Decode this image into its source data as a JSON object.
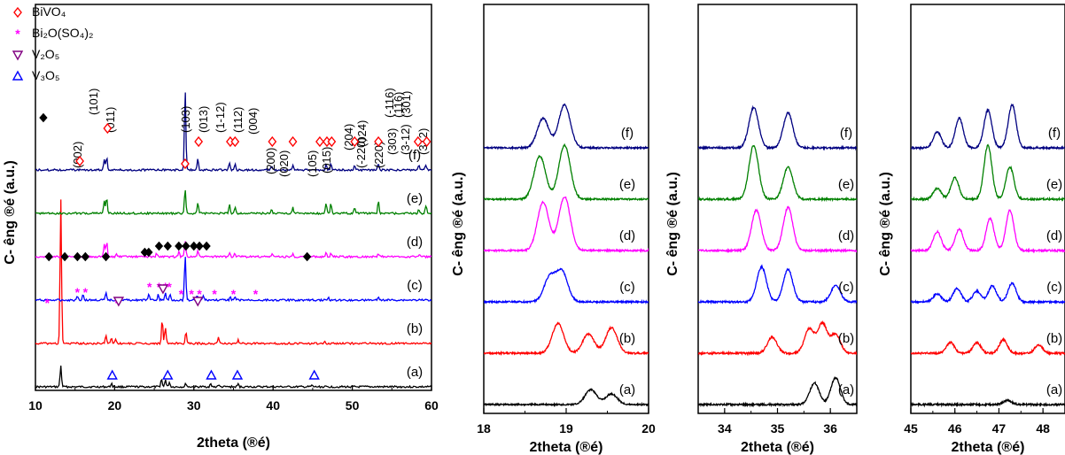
{
  "colors": {
    "a": "#000000",
    "b": "#ff0000",
    "c": "#0000ff",
    "d": "#ff00ff",
    "e": "#008000",
    "f": "#000080",
    "axis": "#000000"
  },
  "chart_data": [
    {
      "type": "line",
      "title": "",
      "xlabel": "2theta (®é)",
      "ylabel": "C- êng ®é (a.u.)",
      "xlim": [
        10,
        60
      ],
      "xticks": [
        "10",
        "20",
        "30",
        "40",
        "50",
        "60"
      ],
      "yticks_visible": false,
      "series": [
        {
          "name": "(a)",
          "color": "#000000",
          "offset": 0,
          "peaks": [
            [
              13.2,
              1.6
            ],
            [
              19.6,
              0.25
            ],
            [
              25.9,
              0.6
            ],
            [
              26.4,
              0.55
            ],
            [
              26.9,
              0.35
            ],
            [
              29.0,
              0.25
            ],
            [
              32.1,
              0.2
            ],
            [
              33.1,
              0.15
            ],
            [
              35.6,
              0.2
            ],
            [
              44.9,
              0.1
            ]
          ]
        },
        {
          "name": "(b)",
          "color": "#ff0000",
          "offset": 1,
          "peaks": [
            [
              13.2,
              11.0
            ],
            [
              18.9,
              0.6
            ],
            [
              19.6,
              0.45
            ],
            [
              20.1,
              0.35
            ],
            [
              26.0,
              1.8
            ],
            [
              26.4,
              1.2
            ],
            [
              29.0,
              0.8
            ],
            [
              33.1,
              0.45
            ],
            [
              35.6,
              0.25
            ],
            [
              46.5,
              0.2
            ]
          ]
        },
        {
          "name": "(c)",
          "color": "#0000ff",
          "offset": 2,
          "peaks": [
            [
              15.3,
              0.35
            ],
            [
              16.0,
              0.45
            ],
            [
              18.9,
              0.5
            ],
            [
              24.3,
              0.45
            ],
            [
              25.5,
              0.4
            ],
            [
              26.4,
              0.55
            ],
            [
              27.0,
              0.4
            ],
            [
              28.9,
              3.5
            ],
            [
              30.4,
              0.4
            ],
            [
              31.2,
              0.3
            ],
            [
              34.6,
              0.25
            ],
            [
              35.2,
              0.2
            ],
            [
              47.0,
              0.15
            ],
            [
              53.3,
              0.15
            ]
          ]
        },
        {
          "name": "(d)",
          "color": "#ff00ff",
          "offset": 3,
          "peaks": [
            [
              18.7,
              0.9
            ],
            [
              19.0,
              1.1
            ],
            [
              20.2,
              0.2
            ],
            [
              25.3,
              0.25
            ],
            [
              28.1,
              0.4
            ],
            [
              28.9,
              1.3
            ],
            [
              30.5,
              0.4
            ],
            [
              34.5,
              0.3
            ],
            [
              35.2,
              0.25
            ],
            [
              39.9,
              0.2
            ],
            [
              42.5,
              0.2
            ],
            [
              46.7,
              0.25
            ],
            [
              47.3,
              0.2
            ],
            [
              53.3,
              0.2
            ],
            [
              58.5,
              0.15
            ]
          ]
        },
        {
          "name": "(e)",
          "color": "#008000",
          "offset": 4,
          "peaks": [
            [
              18.7,
              1.0
            ],
            [
              19.0,
              1.2
            ],
            [
              28.9,
              1.9
            ],
            [
              30.5,
              0.8
            ],
            [
              34.5,
              0.7
            ],
            [
              35.2,
              0.5
            ],
            [
              39.8,
              0.3
            ],
            [
              42.5,
              0.45
            ],
            [
              46.7,
              0.8
            ],
            [
              47.3,
              0.7
            ],
            [
              50.3,
              0.4
            ],
            [
              53.3,
              0.9
            ],
            [
              58.4,
              0.3
            ],
            [
              59.3,
              0.6
            ]
          ]
        },
        {
          "name": "(f)",
          "color": "#000080",
          "offset": 5,
          "peaks": [
            [
              18.7,
              0.8
            ],
            [
              19.0,
              1.0
            ],
            [
              28.9,
              6.2
            ],
            [
              30.5,
              0.8
            ],
            [
              34.5,
              0.55
            ],
            [
              35.2,
              0.45
            ],
            [
              39.8,
              0.3
            ],
            [
              42.5,
              0.35
            ],
            [
              46.7,
              0.4
            ],
            [
              47.3,
              0.45
            ],
            [
              50.3,
              0.3
            ],
            [
              53.3,
              0.5
            ],
            [
              58.4,
              0.3
            ],
            [
              59.3,
              0.4
            ]
          ]
        }
      ],
      "legend": {
        "placement": "top-left",
        "items": [
          {
            "label": "BiVO₄",
            "marker": "diamond",
            "color": "#ff0000"
          },
          {
            "label": "Bi₂O(SO₄)₂",
            "marker": "star",
            "color": "#ff00ff"
          },
          {
            "label": "V₂O₅",
            "marker": "triangle-down",
            "color": "#800080"
          },
          {
            "label": "V₃O₅",
            "marker": "triangle-up",
            "color": "#0000ff"
          }
        ]
      },
      "hkl_labels": [
        {
          "text": "(002)",
          "x": 15.2
        },
        {
          "text": "(101)",
          "x": 17.9
        },
        {
          "text": "(011)",
          "x": 19.9
        },
        {
          "text": "(103)",
          "x": 27.4
        },
        {
          "text": "(013)",
          "x": 29.3
        },
        {
          "text": "(1-12)",
          "x": 31.1
        },
        {
          "text": "(112)",
          "x": 33.0
        },
        {
          "text": "(004)",
          "x": 30.8
        },
        {
          "text": "(200)",
          "x": 34.2
        },
        {
          "text": "(020)",
          "x": 36.2
        },
        {
          "text": "(105)",
          "x": 40.4
        },
        {
          "text": "(015)",
          "x": 43.0
        },
        {
          "text": "(204)",
          "x": 45.7
        },
        {
          "text": "(024)",
          "x": 48.2
        },
        {
          "text": "(-220)",
          "x": 50.3
        },
        {
          "text": "(220)",
          "x": 52.4
        },
        {
          "text": "(-116)",
          "x": 54.6
        },
        {
          "text": "(116)",
          "x": 56.7
        },
        {
          "text": "(301)",
          "x": 58.7
        },
        {
          "text": "(303)",
          "x": 53.9
        },
        {
          "text": "(3-12)",
          "x": 56.4
        },
        {
          "text": "(312)",
          "x": 59.0
        }
      ],
      "markers": [
        {
          "marker": "diamond",
          "color": "#ff0000",
          "series": "(f)",
          "x": [
            15.6,
            19.1,
            28.9,
            30.6,
            34.6,
            35.2,
            39.9,
            42.5,
            45.9,
            46.8,
            47.4,
            50.3,
            53.3,
            58.3,
            59.4
          ]
        },
        {
          "marker": "filled-diamond",
          "color": "#000000",
          "series": "(d)",
          "x": [
            11.7,
            13.7,
            15.3,
            16.3,
            18.9,
            23.8,
            24.3,
            25.6,
            26.7,
            28.1,
            29.0,
            30.0,
            30.7,
            31.6,
            44.3
          ]
        },
        {
          "marker": "filled-diamond",
          "color": "#000000",
          "series": "top",
          "x": [
            11.0
          ]
        },
        {
          "marker": "star",
          "color": "#ff00ff",
          "series": "(c)",
          "x": [
            11.5,
            15.3,
            16.3,
            20.3,
            24.4,
            25.6,
            26.4,
            26.9,
            28.4,
            29.7,
            30.7,
            32.6,
            35.0,
            37.8
          ]
        },
        {
          "marker": "triangle-down",
          "color": "#800080",
          "series": "(c)",
          "x": [
            20.5,
            26.1,
            30.5
          ]
        },
        {
          "marker": "triangle-up",
          "color": "#0000ff",
          "series": "(a)",
          "x": [
            19.7,
            26.7,
            32.2,
            35.5,
            45.2
          ]
        }
      ]
    },
    {
      "type": "line",
      "xlabel": "2theta (®é)",
      "ylabel": "C- êng ®é (a.u.)",
      "xlim": [
        18,
        20
      ],
      "xticks": [
        "18",
        "19",
        "20"
      ],
      "series": [
        {
          "name": "(a)",
          "color": "#000000",
          "peaks": [
            [
              19.3,
              0.35
            ],
            [
              19.55,
              0.25
            ]
          ]
        },
        {
          "name": "(b)",
          "color": "#ff0000",
          "peaks": [
            [
              18.9,
              0.7
            ],
            [
              19.27,
              0.45
            ],
            [
              19.55,
              0.6
            ]
          ]
        },
        {
          "name": "(c)",
          "color": "#0000ff",
          "peaks": [
            [
              18.8,
              0.45
            ],
            [
              18.95,
              0.55
            ]
          ]
        },
        {
          "name": "(d)",
          "color": "#ff00ff",
          "peaks": [
            [
              18.72,
              0.9
            ],
            [
              18.98,
              1.0
            ]
          ]
        },
        {
          "name": "(e)",
          "color": "#008000",
          "peaks": [
            [
              18.68,
              0.8
            ],
            [
              18.98,
              1.0
            ]
          ]
        },
        {
          "name": "(f)",
          "color": "#000080",
          "peaks": [
            [
              18.72,
              0.55
            ],
            [
              18.98,
              0.8
            ]
          ]
        }
      ]
    },
    {
      "type": "line",
      "xlabel": "2theta (®é)",
      "ylabel": "C- êng ®é (a.u.)",
      "xlim": [
        33.5,
        36.5
      ],
      "xticks": [
        "34",
        "35",
        "36"
      ],
      "series": [
        {
          "name": "(a)",
          "color": "#000000",
          "peaks": [
            [
              35.7,
              0.4
            ],
            [
              36.1,
              0.5
            ]
          ]
        },
        {
          "name": "(b)",
          "color": "#ff0000",
          "peaks": [
            [
              34.9,
              0.3
            ],
            [
              35.6,
              0.45
            ],
            [
              35.85,
              0.55
            ],
            [
              36.1,
              0.35
            ]
          ]
        },
        {
          "name": "(c)",
          "color": "#0000ff",
          "peaks": [
            [
              34.7,
              0.65
            ],
            [
              35.2,
              0.6
            ],
            [
              36.1,
              0.3
            ]
          ]
        },
        {
          "name": "(d)",
          "color": "#ff00ff",
          "peaks": [
            [
              34.6,
              0.75
            ],
            [
              35.2,
              0.8
            ]
          ]
        },
        {
          "name": "(e)",
          "color": "#008000",
          "peaks": [
            [
              34.55,
              1.0
            ],
            [
              35.2,
              0.6
            ]
          ]
        },
        {
          "name": "(f)",
          "color": "#000080",
          "peaks": [
            [
              34.55,
              0.75
            ],
            [
              35.2,
              0.65
            ]
          ]
        }
      ]
    },
    {
      "type": "line",
      "xlabel": "2theta (®é)",
      "ylabel": "C- êng ®é (a.u.)",
      "xlim": [
        45,
        48.5
      ],
      "xticks": [
        "45",
        "46",
        "47",
        "48"
      ],
      "series": [
        {
          "name": "(a)",
          "color": "#000000",
          "peaks": [
            [
              47.2,
              0.08
            ]
          ]
        },
        {
          "name": "(b)",
          "color": "#ff0000",
          "peaks": [
            [
              45.9,
              0.2
            ],
            [
              46.5,
              0.2
            ],
            [
              47.1,
              0.25
            ],
            [
              47.9,
              0.15
            ]
          ]
        },
        {
          "name": "(c)",
          "color": "#0000ff",
          "peaks": [
            [
              45.6,
              0.15
            ],
            [
              46.05,
              0.25
            ],
            [
              46.5,
              0.2
            ],
            [
              46.85,
              0.3
            ],
            [
              47.3,
              0.35
            ]
          ]
        },
        {
          "name": "(d)",
          "color": "#ff00ff",
          "peaks": [
            [
              45.6,
              0.35
            ],
            [
              46.1,
              0.4
            ],
            [
              46.8,
              0.6
            ],
            [
              47.25,
              0.75
            ]
          ]
        },
        {
          "name": "(e)",
          "color": "#008000",
          "peaks": [
            [
              45.6,
              0.2
            ],
            [
              46.0,
              0.4
            ],
            [
              46.75,
              1.0
            ],
            [
              47.25,
              0.6
            ]
          ]
        },
        {
          "name": "(f)",
          "color": "#000080",
          "peaks": [
            [
              45.6,
              0.3
            ],
            [
              46.1,
              0.55
            ],
            [
              46.75,
              0.7
            ],
            [
              47.3,
              0.8
            ]
          ]
        }
      ]
    }
  ]
}
